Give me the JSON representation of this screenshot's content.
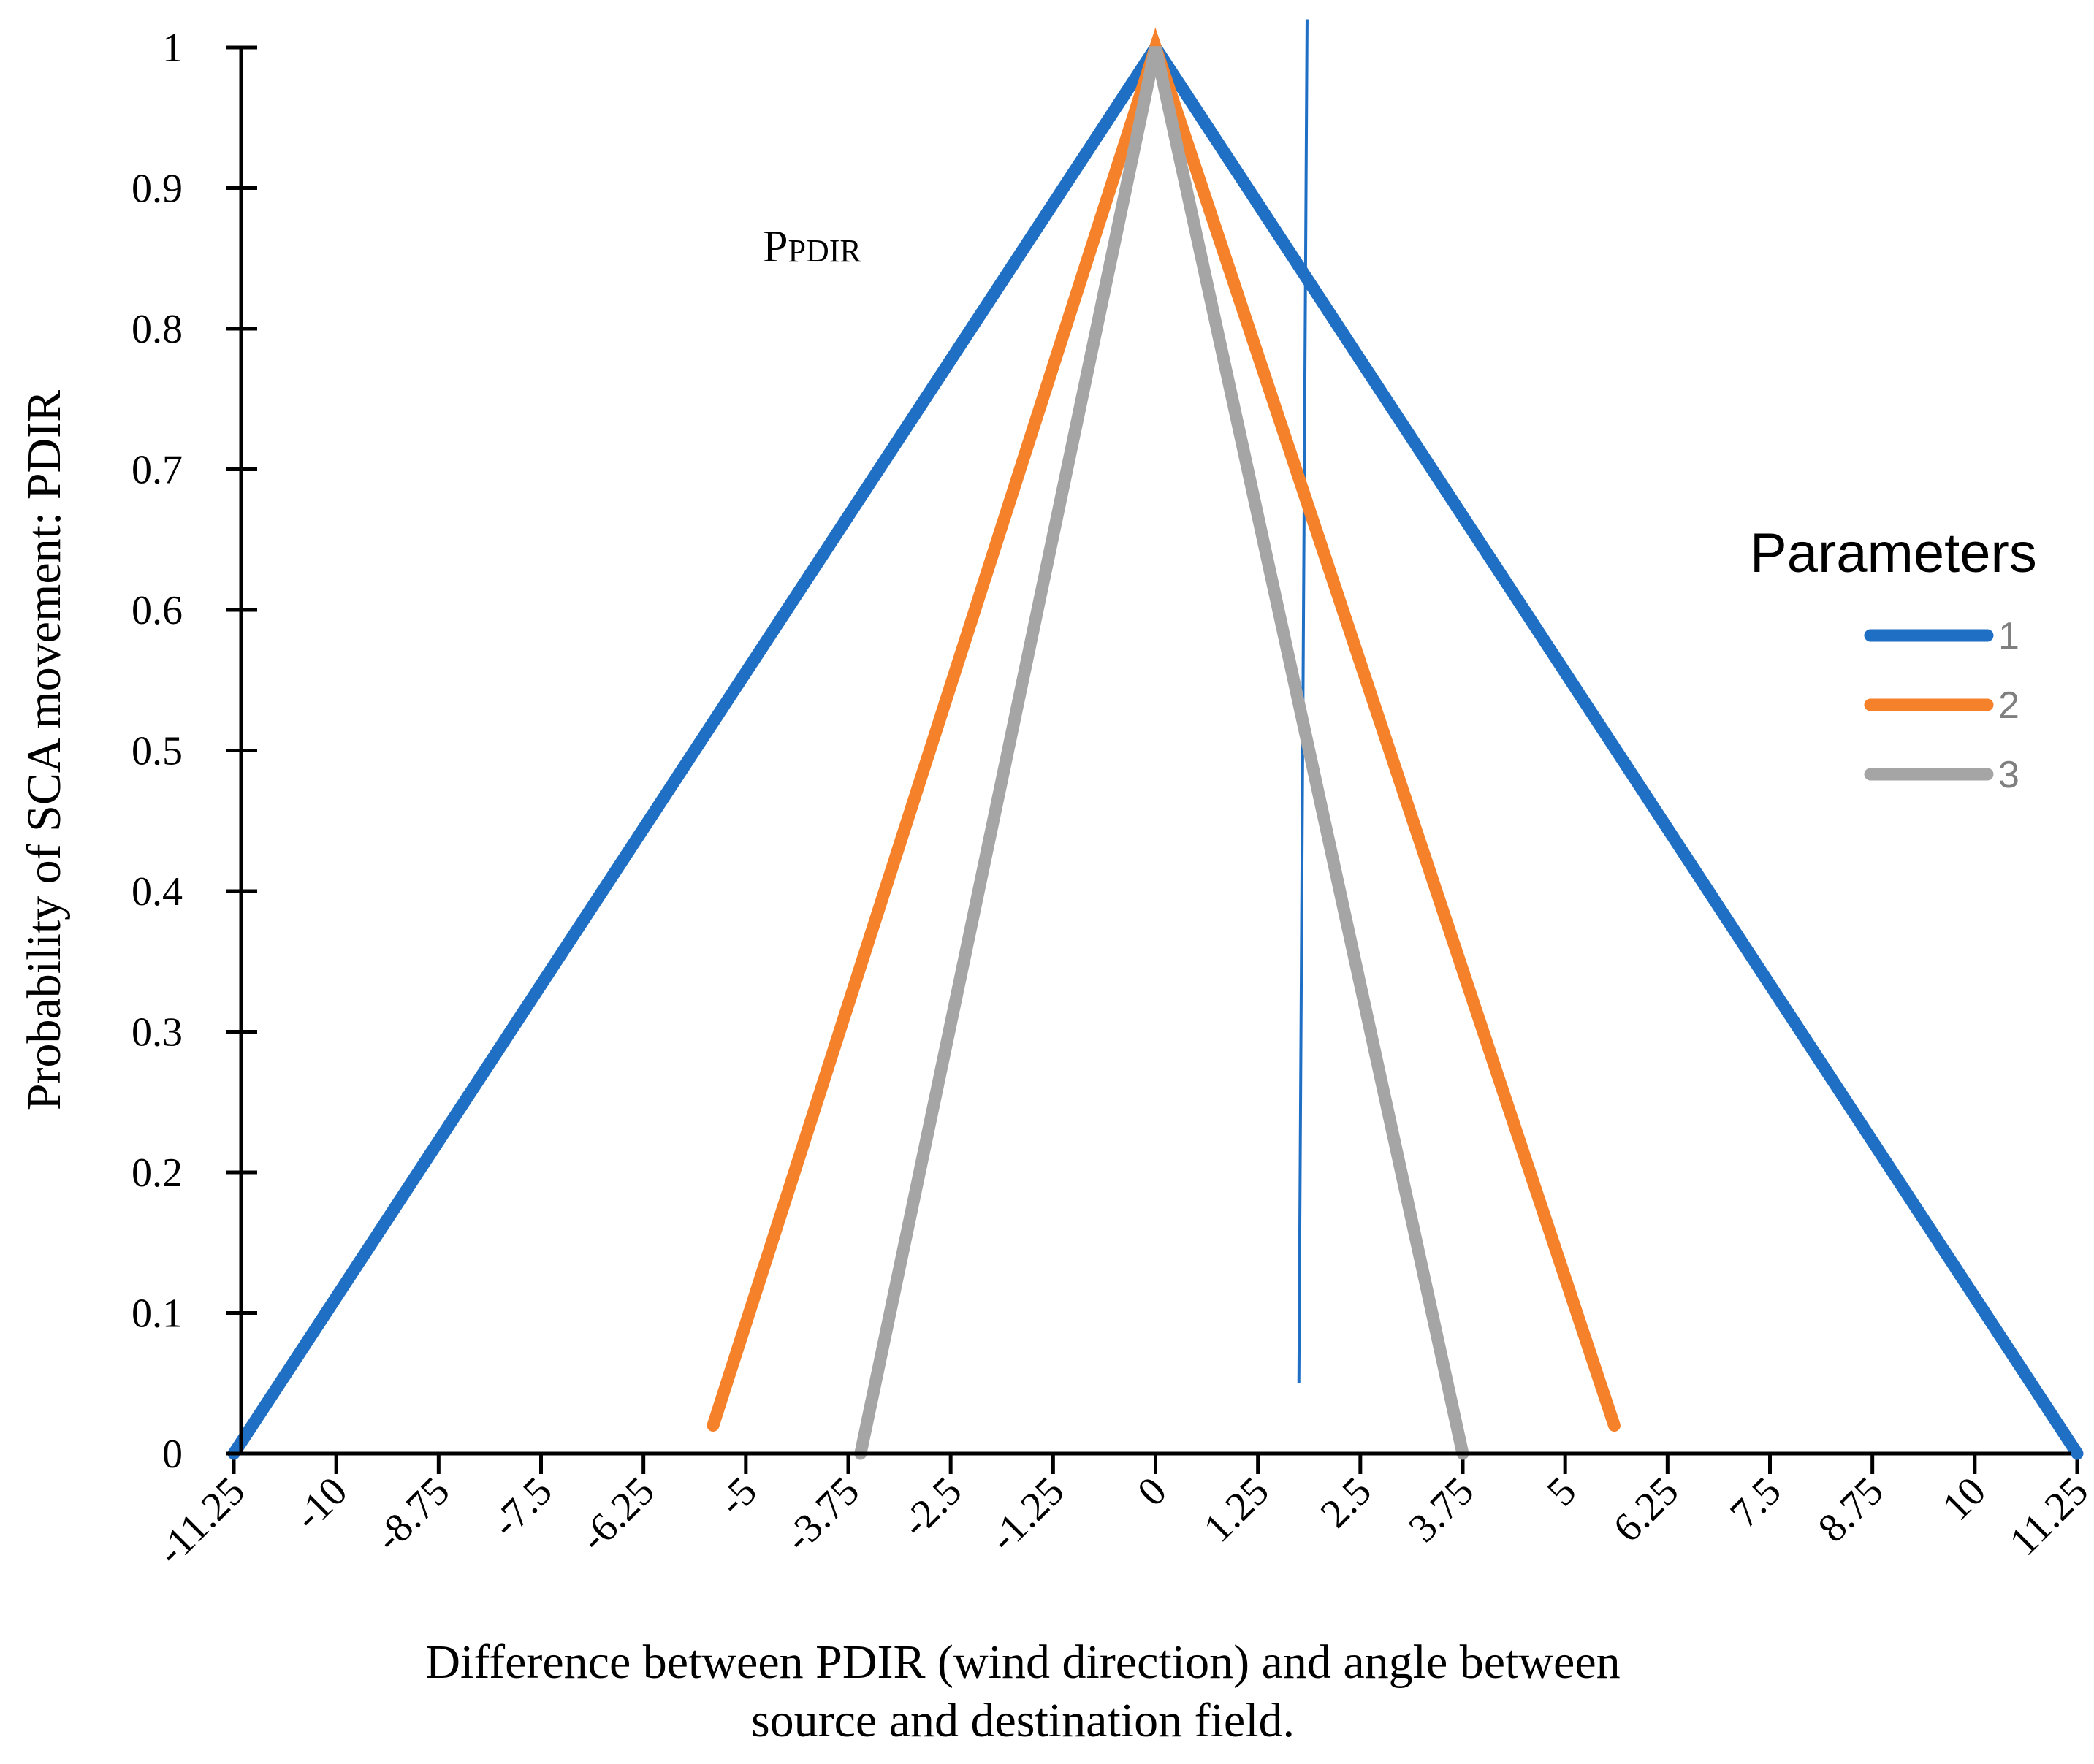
{
  "chart_data": {
    "type": "line",
    "title": "",
    "xlabel_lines": [
      "Difference between PDIR (wind direction) and angle between",
      "source and destination field."
    ],
    "ylabel": "Probability of SCA movement: PDIR",
    "xlim": [
      -11.25,
      11.25
    ],
    "ylim": [
      0,
      1
    ],
    "x_ticks": [
      -11.25,
      -10,
      -8.75,
      -7.5,
      -6.25,
      -5,
      -3.75,
      -2.5,
      -1.25,
      0,
      1.25,
      2.5,
      3.75,
      5,
      6.25,
      7.5,
      8.75,
      10,
      11.25
    ],
    "x_tick_labels": [
      "-11.25",
      "-10",
      "-8.75",
      "-7.5",
      "-6.25",
      "-5",
      "-3.75",
      "-2.5",
      "-1.25",
      "0",
      "1.25",
      "2.5",
      "3.75",
      "5",
      "6.25",
      "7.5",
      "8.75",
      "10",
      "11.25"
    ],
    "y_ticks": [
      0,
      0.1,
      0.2,
      0.3,
      0.4,
      0.5,
      0.6,
      0.7,
      0.8,
      0.9,
      1
    ],
    "y_tick_labels": [
      "0",
      "0.1",
      "0.2",
      "0.3",
      "0.4",
      "0.5",
      "0.6",
      "0.7",
      "0.8",
      "0.9",
      "1"
    ],
    "legend_title": "Parameters",
    "legend_position": "right",
    "series": [
      {
        "name": "1",
        "color": "#1f6fc5",
        "x": [
          -11.25,
          0,
          11.25
        ],
        "y": [
          0,
          1,
          0
        ]
      },
      {
        "name": "2",
        "color": "#f5822a",
        "x": [
          -5.4,
          0,
          5.6
        ],
        "y": [
          0.02,
          1,
          0.02
        ]
      },
      {
        "name": "3",
        "color": "#a5a5a5",
        "x": [
          -3.6,
          0,
          3.75
        ],
        "y": [
          0,
          1,
          0
        ]
      }
    ],
    "reference_line": {
      "color": "#1f6fc5",
      "x": [
        1.85,
        1.75
      ],
      "y": [
        1.02,
        0.05
      ]
    },
    "annotation": {
      "main": "P",
      "sub": "PDIR",
      "x": -3.9,
      "y": 0.85
    }
  }
}
